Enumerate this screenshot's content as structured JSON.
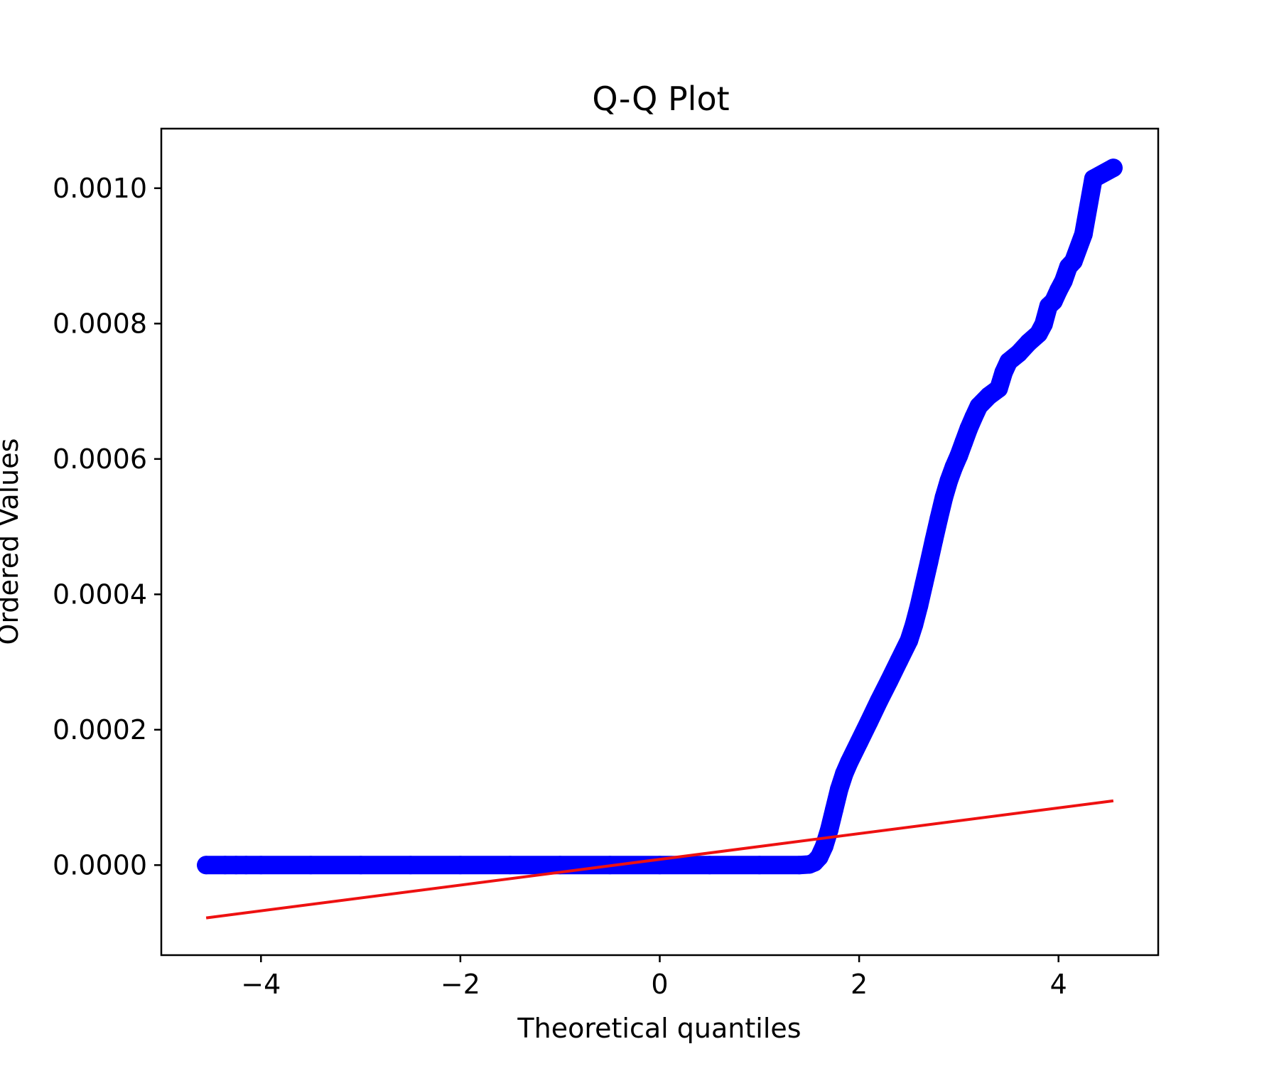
{
  "chart_data": {
    "type": "scatter",
    "title": "Q-Q Plot",
    "xlabel": "Theoretical quantiles",
    "ylabel": "Ordered Values",
    "xlim": [
      -5.0,
      5.0
    ],
    "ylim": [
      -0.000133,
      0.001088
    ],
    "xticks": [
      -4,
      -2,
      0,
      2,
      4
    ],
    "xtick_labels": [
      "−4",
      "−2",
      "0",
      "2",
      "4"
    ],
    "yticks": [
      0.0,
      0.0002,
      0.0004,
      0.0006,
      0.0008,
      0.001
    ],
    "ytick_labels": [
      "0.0000",
      "0.0002",
      "0.0004",
      "0.0006",
      "0.0008",
      "0.0010"
    ],
    "grid": false,
    "colors": {
      "points": "#0000ff",
      "fit_line": "#ee1111",
      "axes": "#000000"
    },
    "series": [
      {
        "kind": "points",
        "values": [
          [
            -4.55,
            0.0
          ],
          [
            -4.36,
            0.0
          ],
          [
            -4.25,
            0.0
          ],
          [
            -4.15,
            0.0
          ],
          [
            -4.0,
            0.0
          ],
          [
            -3.5,
            0.0
          ],
          [
            -3.0,
            0.0
          ],
          [
            -2.5,
            0.0
          ],
          [
            -2.0,
            0.0
          ],
          [
            -1.5,
            0.0
          ],
          [
            -1.0,
            0.0
          ],
          [
            -0.5,
            0.0
          ],
          [
            0.0,
            0.0
          ],
          [
            0.5,
            0.0
          ],
          [
            1.0,
            0.0
          ],
          [
            1.4,
            0.0
          ],
          [
            1.5,
            1e-06
          ],
          [
            1.55,
            4e-06
          ],
          [
            1.6,
            1.2e-05
          ],
          [
            1.65,
            2.8e-05
          ],
          [
            1.7,
            5.2e-05
          ],
          [
            1.75,
            8.2e-05
          ],
          [
            1.8,
            0.000112
          ],
          [
            1.85,
            0.000135
          ],
          [
            1.9,
            0.000152
          ],
          [
            2.0,
            0.000182
          ],
          [
            2.1,
            0.000212
          ],
          [
            2.2,
            0.000243
          ],
          [
            2.3,
            0.000272
          ],
          [
            2.4,
            0.000302
          ],
          [
            2.5,
            0.000332
          ],
          [
            2.55,
            0.000355
          ],
          [
            2.6,
            0.000383
          ],
          [
            2.65,
            0.000415
          ],
          [
            2.7,
            0.000447
          ],
          [
            2.75,
            0.00048
          ],
          [
            2.8,
            0.000512
          ],
          [
            2.85,
            0.000543
          ],
          [
            2.9,
            0.000568
          ],
          [
            2.95,
            0.000588
          ],
          [
            3.0,
            0.000605
          ],
          [
            3.05,
            0.000625
          ],
          [
            3.1,
            0.000645
          ],
          [
            3.15,
            0.000662
          ],
          [
            3.2,
            0.000678
          ],
          [
            3.3,
            0.000693
          ],
          [
            3.4,
            0.000704
          ],
          [
            3.45,
            0.000728
          ],
          [
            3.5,
            0.000744
          ],
          [
            3.6,
            0.000756
          ],
          [
            3.7,
            0.000772
          ],
          [
            3.8,
            0.000785
          ],
          [
            3.85,
            0.000799
          ],
          [
            3.9,
            0.000826
          ],
          [
            3.95,
            0.000833
          ],
          [
            4.0,
            0.000849
          ],
          [
            4.05,
            0.000863
          ],
          [
            4.1,
            0.000884
          ],
          [
            4.15,
            0.000892
          ],
          [
            4.25,
            0.000932
          ],
          [
            4.35,
            0.001014
          ],
          [
            4.55,
            0.00103
          ]
        ]
      },
      {
        "kind": "fit_line",
        "values": [
          [
            -4.55,
            -7.8e-05
          ],
          [
            4.55,
            9.5e-05
          ]
        ]
      }
    ]
  }
}
